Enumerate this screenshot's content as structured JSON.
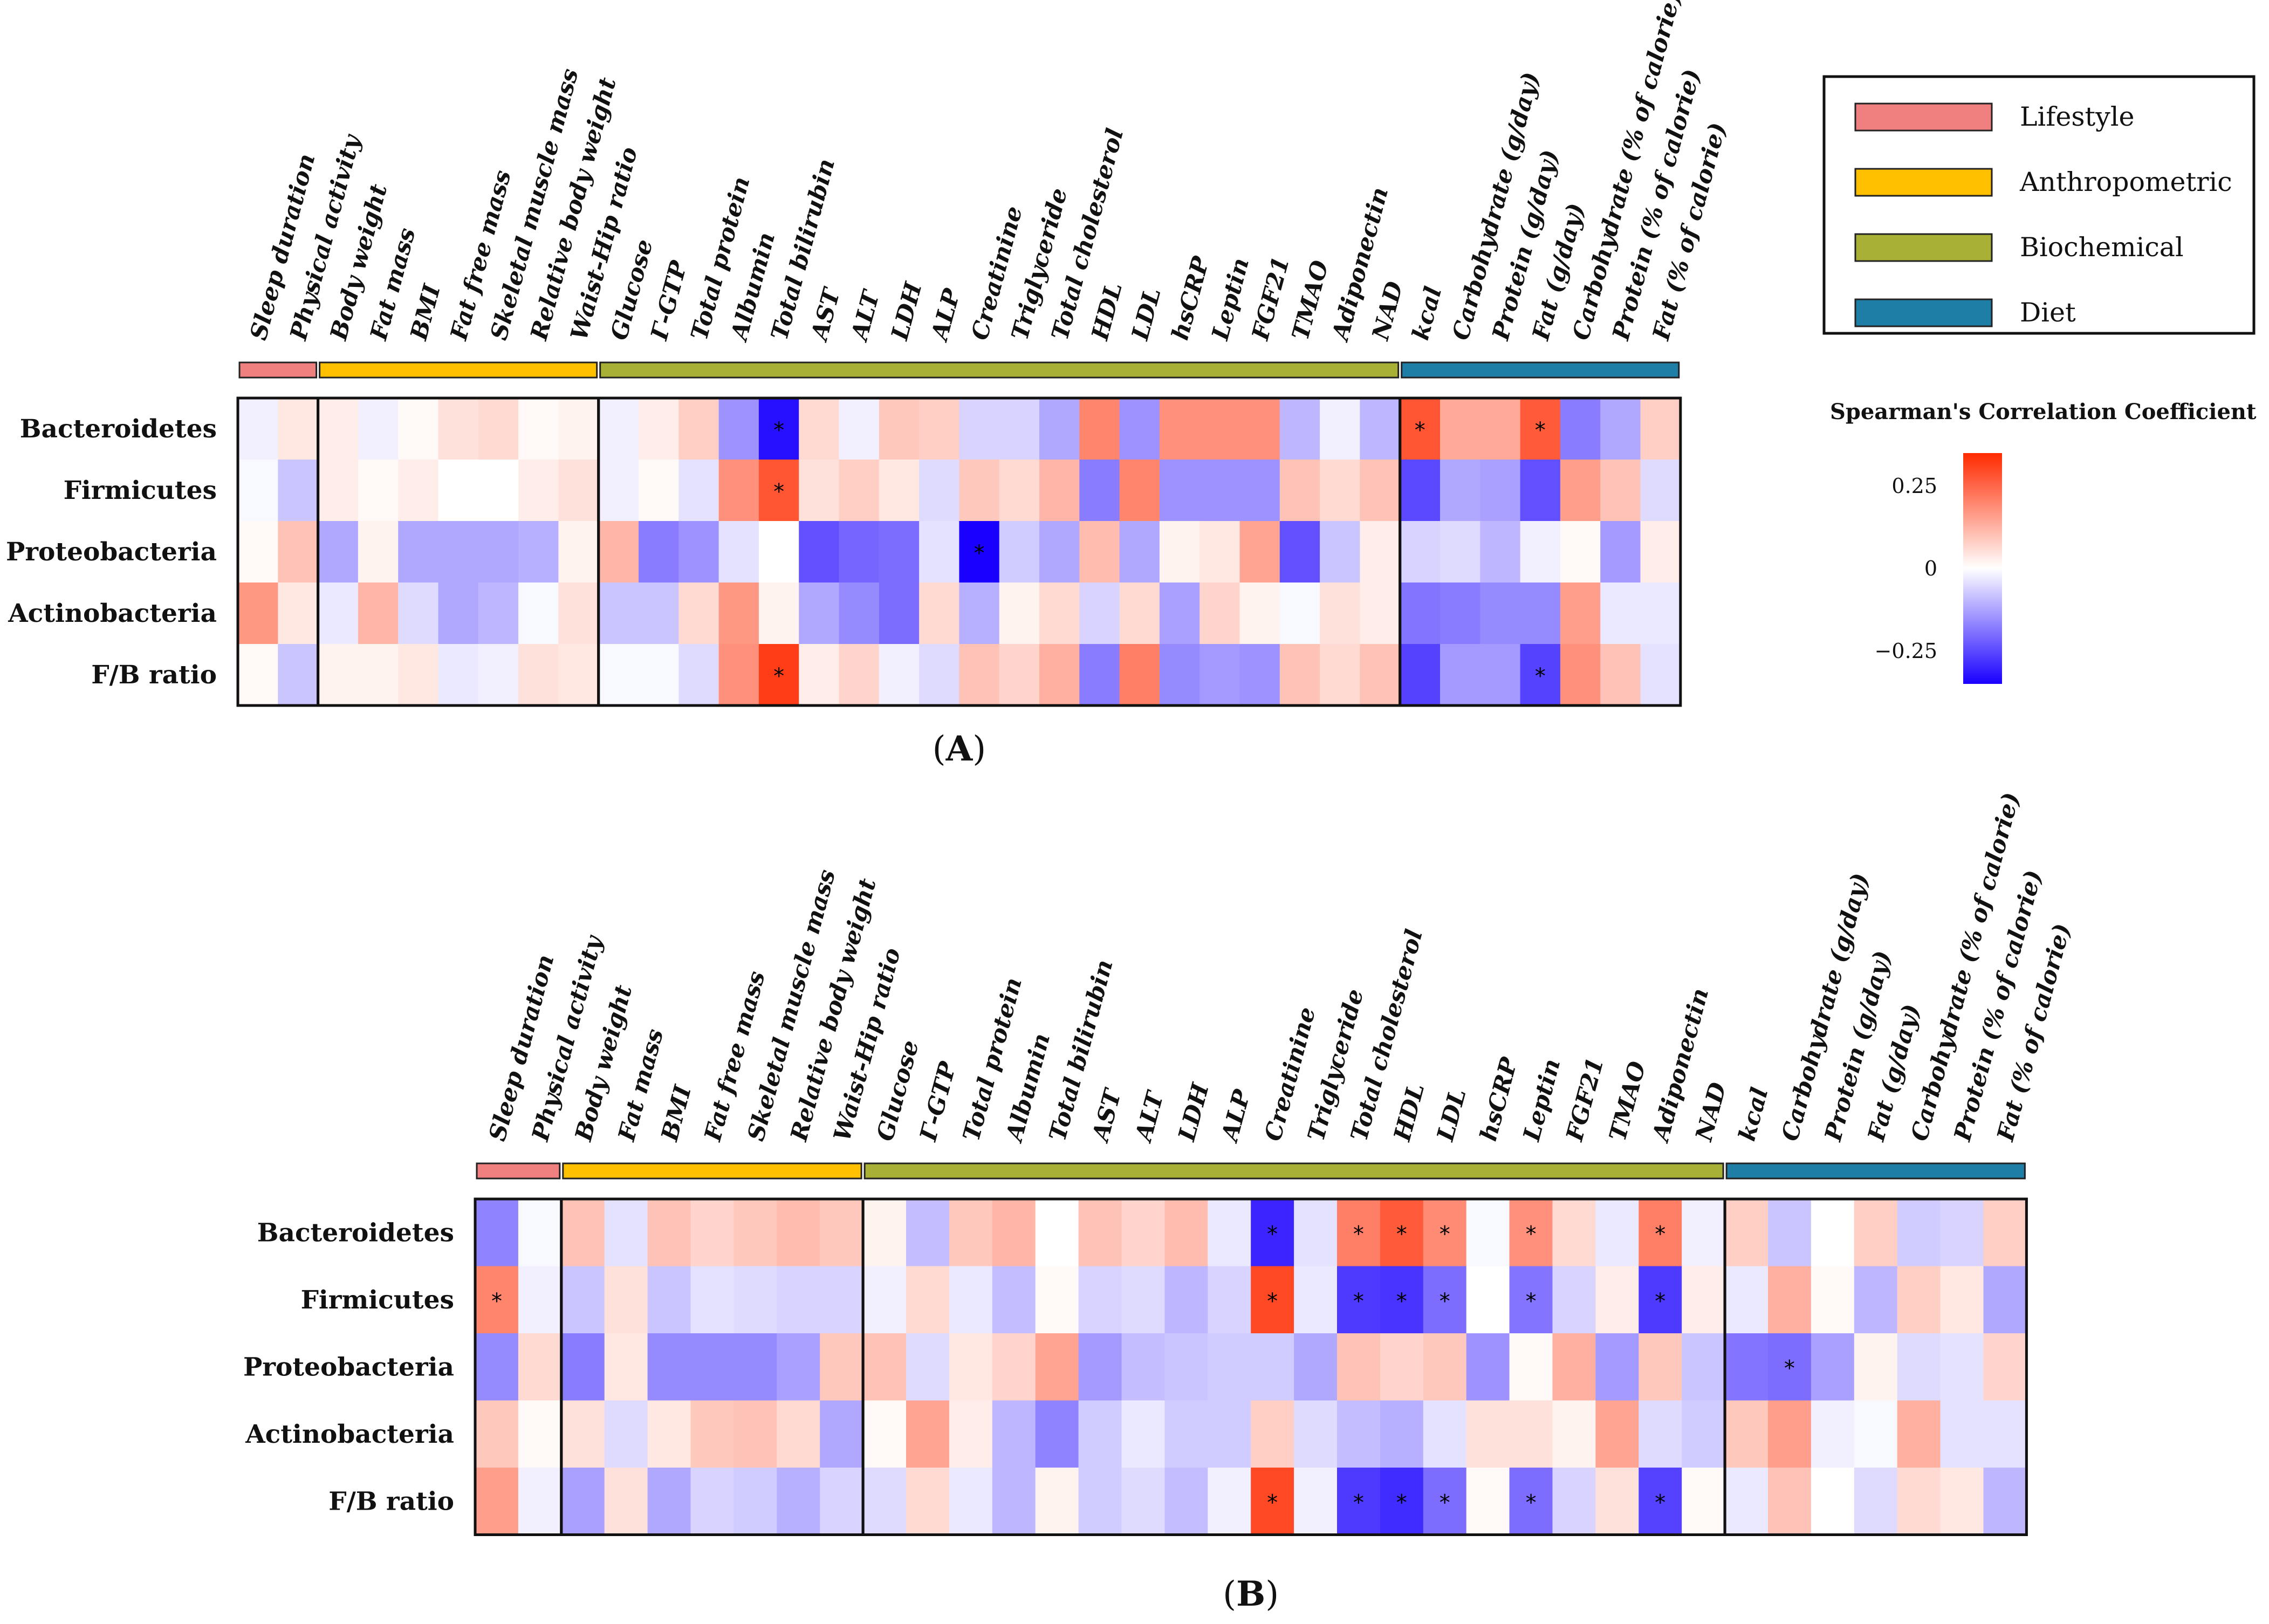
{
  "chart_data": [
    {
      "type": "heatmap",
      "panel_label": "A",
      "rows": [
        "Bacteroidetes",
        "Firmicutes",
        "Proteobacteria",
        "Actinobacteria",
        "F/B ratio"
      ],
      "columns": [
        "Sleep duration",
        "Physical activity",
        "Body weight",
        "Fat mass",
        "BMI",
        "Fat free mass",
        "Skeletal muscle mass",
        "Relative body weight",
        "Waist-Hip ratio",
        "Glucose",
        "Γ-GTP",
        "Total protein",
        "Albumin",
        "Total bilirubin",
        "AST",
        "ALT",
        "LDH",
        "ALP",
        "Creatinine",
        "Triglyceride",
        "Total cholesterol",
        "HDL",
        "LDL",
        "hsCRP",
        "Leptin",
        "FGF21",
        "TMAO",
        "Adiponectin",
        "NAD",
        "kcal",
        "Carbohydrate (g/day)",
        "Protein (g/day)",
        "Fat (g/day)",
        "Carbohydrate (% of calorie)",
        "Protein (% of calorie)",
        "Fat (% of calorie)"
      ],
      "groups": [
        {
          "name": "Lifestyle",
          "start": 0,
          "end": 1
        },
        {
          "name": "Anthropometric",
          "start": 2,
          "end": 8
        },
        {
          "name": "Biochemical",
          "start": 9,
          "end": 28
        },
        {
          "name": "Diet",
          "start": 29,
          "end": 35
        }
      ],
      "values": [
        [
          -0.02,
          0.04,
          0.03,
          -0.02,
          0.01,
          0.05,
          0.06,
          0.01,
          0.02,
          -0.02,
          0.03,
          0.08,
          -0.15,
          -0.33,
          0.06,
          -0.02,
          0.09,
          0.08,
          -0.06,
          -0.06,
          -0.12,
          0.2,
          -0.15,
          0.18,
          0.18,
          0.18,
          -0.1,
          -0.02,
          -0.1,
          0.28,
          0.14,
          0.14,
          0.27,
          -0.18,
          -0.12,
          0.08
        ],
        [
          -0.01,
          -0.08,
          0.03,
          0.01,
          0.03,
          0.0,
          0.0,
          0.03,
          0.05,
          -0.02,
          0.01,
          -0.04,
          0.18,
          0.28,
          0.05,
          0.08,
          0.04,
          -0.05,
          0.09,
          0.06,
          0.12,
          -0.18,
          0.2,
          -0.15,
          -0.15,
          -0.15,
          0.1,
          0.06,
          0.1,
          -0.25,
          -0.12,
          -0.13,
          -0.24,
          0.16,
          0.1,
          -0.05
        ],
        [
          0.01,
          0.1,
          -0.12,
          0.02,
          -0.12,
          -0.12,
          -0.12,
          -0.11,
          0.02,
          0.12,
          -0.18,
          -0.15,
          -0.04,
          0.0,
          -0.24,
          -0.21,
          -0.2,
          -0.04,
          -0.35,
          -0.07,
          -0.12,
          0.11,
          -0.12,
          0.02,
          0.04,
          0.15,
          -0.24,
          -0.08,
          0.03,
          -0.06,
          -0.05,
          -0.1,
          -0.02,
          0.01,
          -0.14,
          0.03
        ],
        [
          0.17,
          0.04,
          -0.03,
          0.12,
          -0.05,
          -0.12,
          -0.1,
          -0.01,
          0.05,
          -0.08,
          -0.08,
          0.06,
          0.17,
          0.02,
          -0.12,
          -0.16,
          -0.2,
          0.06,
          -0.11,
          0.02,
          0.06,
          -0.06,
          0.06,
          -0.13,
          0.07,
          0.02,
          -0.01,
          0.05,
          0.03,
          -0.19,
          -0.18,
          -0.16,
          -0.16,
          0.16,
          -0.03,
          -0.03
        ],
        [
          0.01,
          -0.08,
          0.02,
          0.02,
          0.04,
          -0.03,
          -0.02,
          0.05,
          0.04,
          -0.01,
          -0.01,
          -0.05,
          0.18,
          0.32,
          0.03,
          0.07,
          -0.02,
          -0.05,
          0.1,
          0.07,
          0.13,
          -0.18,
          0.21,
          -0.16,
          -0.14,
          -0.15,
          0.1,
          0.06,
          0.1,
          -0.26,
          -0.14,
          -0.14,
          -0.26,
          0.18,
          0.1,
          -0.04
        ]
      ],
      "significant": [
        [
          0,
          13
        ],
        [
          0,
          29
        ],
        [
          0,
          32
        ],
        [
          1,
          13
        ],
        [
          2,
          18
        ],
        [
          4,
          13
        ],
        [
          4,
          32
        ]
      ],
      "significance_symbol": "*"
    },
    {
      "type": "heatmap",
      "panel_label": "B",
      "rows": [
        "Bacteroidetes",
        "Firmicutes",
        "Proteobacteria",
        "Actinobacteria",
        "F/B ratio"
      ],
      "columns": [
        "Sleep duration",
        "Physical activity",
        "Body weight",
        "Fat mass",
        "BMI",
        "Fat free mass",
        "Skeletal muscle mass",
        "Relative body weight",
        "Waist-Hip ratio",
        "Glucose",
        "Γ-GTP",
        "Total protein",
        "Albumin",
        "Total bilirubin",
        "AST",
        "ALT",
        "LDH",
        "ALP",
        "Creatinine",
        "Triglyceride",
        "Total cholesterol",
        "HDL",
        "LDL",
        "hsCRP",
        "Leptin",
        "FGF21",
        "TMAO",
        "Adiponectin",
        "NAD",
        "kcal",
        "Carbohydrate (g/day)",
        "Protein (g/day)",
        "Fat (g/day)",
        "Carbohydrate (% of calorie)",
        "Protein (% of calorie)",
        "Fat (% of calorie)"
      ],
      "groups": [
        {
          "name": "Lifestyle",
          "start": 0,
          "end": 1
        },
        {
          "name": "Anthropometric",
          "start": 2,
          "end": 8
        },
        {
          "name": "Biochemical",
          "start": 9,
          "end": 28
        },
        {
          "name": "Diet",
          "start": 29,
          "end": 35
        }
      ],
      "values": [
        [
          -0.17,
          -0.01,
          0.1,
          -0.04,
          0.1,
          0.07,
          0.09,
          0.11,
          0.09,
          0.02,
          -0.09,
          0.09,
          0.12,
          0.0,
          0.1,
          0.07,
          0.11,
          -0.03,
          -0.3,
          -0.04,
          0.21,
          0.27,
          0.19,
          -0.01,
          0.18,
          0.06,
          -0.03,
          0.21,
          -0.02,
          0.08,
          -0.08,
          0.0,
          0.08,
          -0.07,
          -0.06,
          0.08
        ],
        [
          0.2,
          -0.02,
          -0.08,
          0.05,
          -0.08,
          -0.04,
          -0.05,
          -0.06,
          -0.06,
          -0.02,
          0.06,
          -0.03,
          -0.09,
          0.01,
          -0.06,
          -0.05,
          -0.1,
          -0.06,
          0.3,
          -0.03,
          -0.27,
          -0.28,
          -0.2,
          0.0,
          -0.19,
          -0.06,
          0.03,
          -0.27,
          0.03,
          -0.03,
          0.13,
          0.01,
          -0.1,
          0.08,
          0.04,
          -0.12
        ],
        [
          -0.16,
          0.06,
          -0.18,
          0.04,
          -0.16,
          -0.16,
          -0.16,
          -0.13,
          0.09,
          0.1,
          -0.05,
          0.04,
          0.07,
          0.15,
          -0.14,
          -0.09,
          -0.08,
          -0.07,
          -0.07,
          -0.12,
          0.1,
          0.07,
          0.09,
          -0.15,
          0.01,
          0.13,
          -0.14,
          0.09,
          -0.08,
          -0.19,
          -0.2,
          -0.13,
          0.02,
          -0.05,
          -0.04,
          0.07
        ],
        [
          0.09,
          0.01,
          0.05,
          -0.05,
          0.04,
          0.09,
          0.1,
          0.06,
          -0.12,
          0.01,
          0.15,
          0.03,
          -0.1,
          -0.17,
          -0.07,
          -0.03,
          -0.07,
          -0.07,
          0.08,
          -0.05,
          -0.09,
          -0.11,
          -0.04,
          0.05,
          0.05,
          0.02,
          0.15,
          -0.05,
          -0.07,
          0.09,
          0.16,
          -0.02,
          -0.01,
          0.13,
          -0.04,
          -0.04
        ],
        [
          0.16,
          -0.02,
          -0.13,
          0.05,
          -0.12,
          -0.06,
          -0.07,
          -0.11,
          -0.06,
          -0.05,
          0.06,
          -0.03,
          -0.1,
          0.02,
          -0.07,
          -0.05,
          -0.09,
          -0.02,
          0.3,
          -0.02,
          -0.27,
          -0.29,
          -0.2,
          0.01,
          -0.2,
          -0.06,
          0.05,
          -0.26,
          0.01,
          -0.03,
          0.1,
          0.0,
          -0.05,
          0.06,
          0.04,
          -0.1
        ]
      ],
      "significant": [
        [
          0,
          18
        ],
        [
          0,
          20
        ],
        [
          0,
          21
        ],
        [
          0,
          22
        ],
        [
          0,
          24
        ],
        [
          0,
          27
        ],
        [
          1,
          0
        ],
        [
          1,
          18
        ],
        [
          1,
          20
        ],
        [
          1,
          21
        ],
        [
          1,
          22
        ],
        [
          1,
          24
        ],
        [
          1,
          27
        ],
        [
          2,
          30
        ],
        [
          4,
          18
        ],
        [
          4,
          20
        ],
        [
          4,
          21
        ],
        [
          4,
          22
        ],
        [
          4,
          24
        ],
        [
          4,
          27
        ]
      ],
      "significance_symbol": "*"
    }
  ],
  "legend": {
    "items": [
      {
        "label": "Lifestyle",
        "color": "#f08080"
      },
      {
        "label": "Anthropometric",
        "color": "#ffc000"
      },
      {
        "label": "Biochemical",
        "color": "#a9b036"
      },
      {
        "label": "Diet",
        "color": "#1f7ea6"
      }
    ]
  },
  "colorbar": {
    "title": "Spearman's Correlation Coefficient",
    "range": [
      -0.35,
      0.35
    ],
    "ticks": [
      0.25,
      0,
      -0.25
    ],
    "tick_labels": [
      "0.25",
      "0",
      "−0.25"
    ],
    "low_color": "#1a00ff",
    "mid_color": "#ffffff",
    "high_color": "#ff2a00"
  }
}
